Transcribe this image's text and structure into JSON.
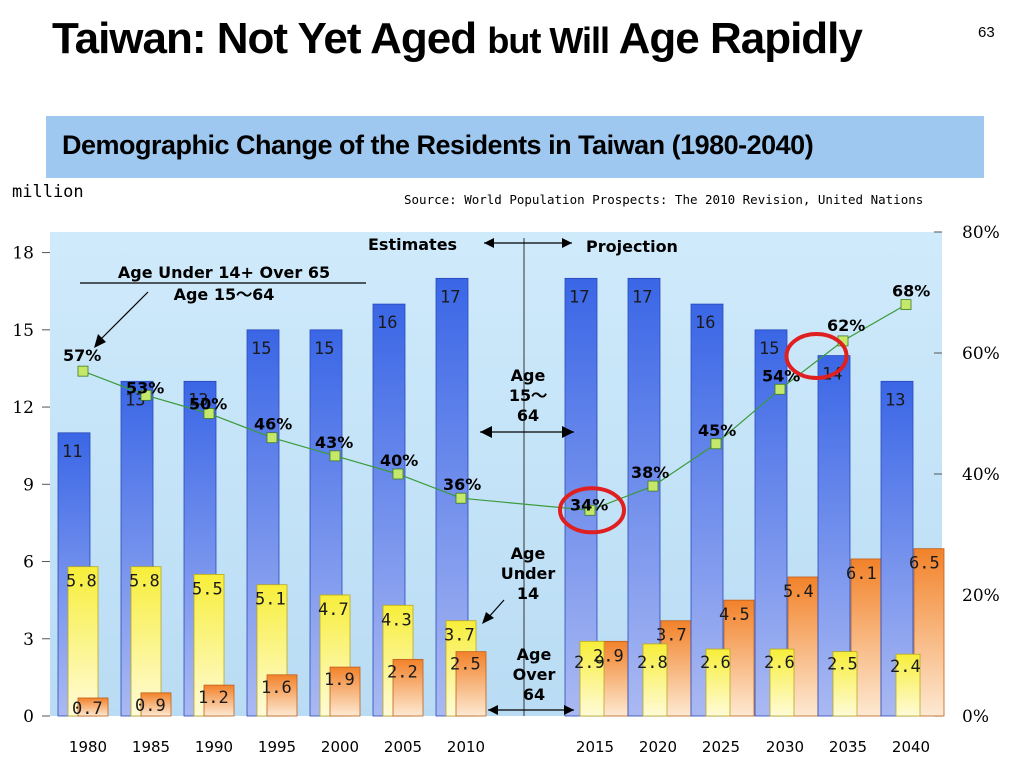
{
  "slide": {
    "title_part1": "Taiwan: Not Yet Aged",
    "title_part2": "but Will",
    "title_part3": "Age Rapidly",
    "page_number": "63",
    "subtitle": "Demographic Change of the Residents in Taiwan (1980-2040)",
    "unit_label": "million",
    "source_note": "Source: World Population Prospects: The 2010 Revision, United Nations"
  },
  "chart_data": {
    "type": "bar",
    "categories": [
      "1980",
      "1985",
      "1990",
      "1995",
      "2000",
      "2005",
      "2010",
      "2015",
      "2020",
      "2025",
      "2030",
      "2035",
      "2040"
    ],
    "series": [
      {
        "name": "Age 15～64",
        "values": [
          11,
          13,
          13,
          15,
          15,
          16,
          17,
          17,
          17,
          16,
          15,
          14,
          13
        ],
        "labels": [
          "11",
          "13",
          "13",
          "15",
          "15",
          "16",
          "17",
          "17",
          "17",
          "16",
          "15",
          "14",
          "13"
        ]
      },
      {
        "name": "Age Under 14",
        "values": [
          5.8,
          5.8,
          5.5,
          5.1,
          4.7,
          4.3,
          3.7,
          2.9,
          2.8,
          2.6,
          2.6,
          2.5,
          2.4
        ],
        "labels": [
          "5.8",
          "5.8",
          "5.5",
          "5.1",
          "4.7",
          "4.3",
          "3.7",
          "2.9",
          "2.8",
          "2.6",
          "2.6",
          "2.5",
          "2.4"
        ]
      },
      {
        "name": "Age Over 64",
        "values": [
          0.7,
          0.9,
          1.2,
          1.6,
          1.9,
          2.2,
          2.5,
          2.9,
          3.7,
          4.5,
          5.4,
          6.1,
          6.5
        ],
        "labels": [
          "0.7",
          "0.9",
          "1.2",
          "1.6",
          "1.9",
          "2.2",
          "2.5",
          "2.9",
          "3.7",
          "4.5",
          "5.4",
          "6.1",
          "6.5"
        ]
      },
      {
        "name": "Age Under 14+ Over 65 / Age 15～64",
        "axis": "right",
        "type": "line",
        "values": [
          57,
          53,
          50,
          46,
          43,
          40,
          36,
          34,
          38,
          45,
          54,
          62,
          68
        ],
        "labels": [
          "57%",
          "53%",
          "50%",
          "46%",
          "43%",
          "40%",
          "36%",
          "34%",
          "38%",
          "45%",
          "54%",
          "62%",
          "68%"
        ]
      }
    ],
    "yticks_left": [
      "0",
      "3",
      "6",
      "9",
      "12",
      "15",
      "18"
    ],
    "ylim_left": [
      0,
      18.8
    ],
    "yticks_right": [
      "0%",
      "20%",
      "40%",
      "60%",
      "80%"
    ],
    "ylim_right": [
      0,
      80
    ],
    "annotations": {
      "estimates": "Estimates",
      "projection": "Projection",
      "ratio_line1": "Age Under 14+ Over 65",
      "ratio_line2": "Age 15～64",
      "working_age": [
        "Age",
        "15～",
        "64"
      ],
      "young": [
        "Age",
        "Under",
        "14"
      ],
      "old": [
        "Age",
        "Over",
        "64"
      ]
    },
    "highlighted_points": [
      "2015",
      "2035"
    ],
    "colors": {
      "working_bar": "#4a74ea",
      "young_bar": "#f5ec3a",
      "old_bar": "#f2892e",
      "ratio_line": "#3a9a3a",
      "ratio_marker": "#c6e86a",
      "highlight_circle": "#e02020",
      "plot_background": "#cde8f8"
    }
  }
}
